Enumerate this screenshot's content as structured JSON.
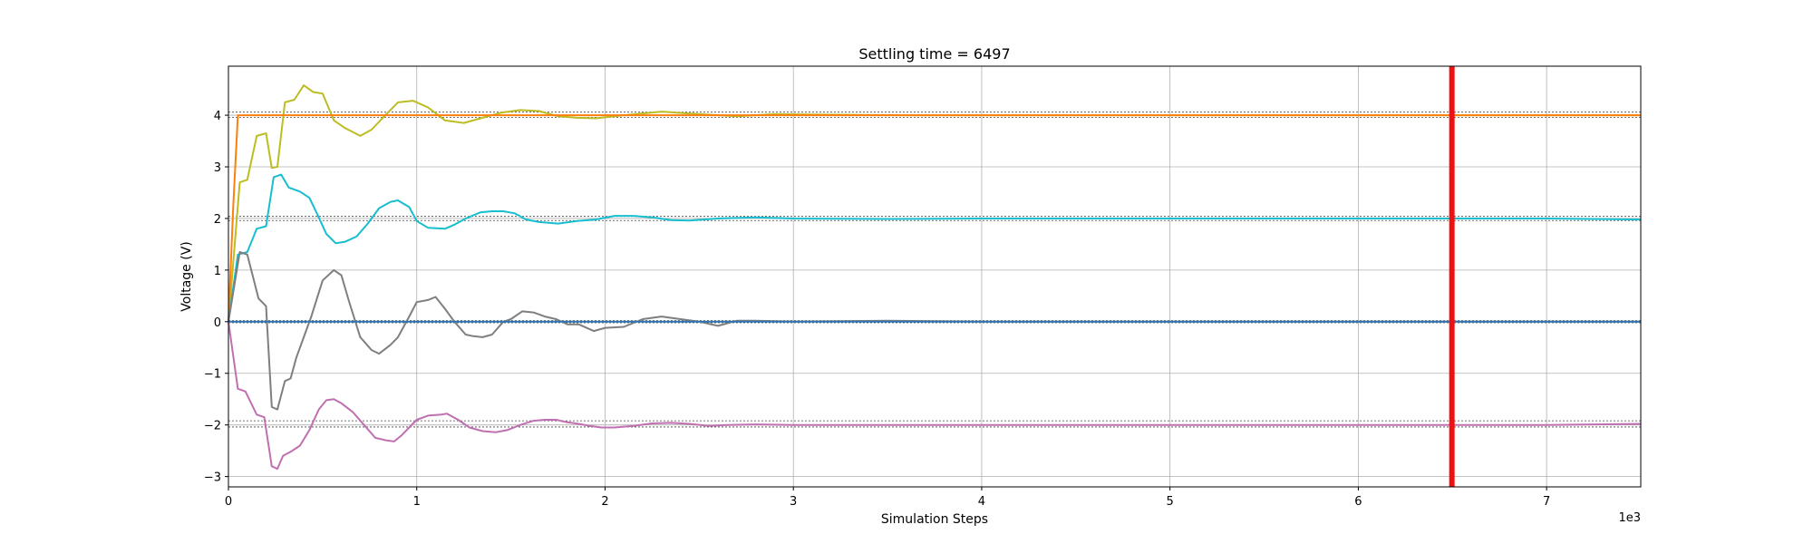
{
  "chart_data": {
    "type": "line",
    "title": "Settling time = 6497",
    "xlabel": "Simulation Steps",
    "ylabel": "Voltage (V)",
    "x_offset_text": "1e3",
    "xlim": [
      0,
      7500
    ],
    "ylim": [
      -3.2,
      4.95
    ],
    "xticks": [
      0,
      1000,
      2000,
      3000,
      4000,
      5000,
      6000,
      7000
    ],
    "xtick_labels": [
      "0",
      "1",
      "2",
      "3",
      "4",
      "5",
      "6",
      "7"
    ],
    "yticks": [
      -3,
      -2,
      -1,
      0,
      1,
      2,
      3,
      4
    ],
    "ytick_labels": [
      "−3",
      "−2",
      "−1",
      "0",
      "1",
      "2",
      "3",
      "4"
    ],
    "grid": true,
    "settling_line": {
      "x": 6497,
      "color": "#ee1111"
    },
    "tolerance_bands": [
      {
        "center": 4,
        "lower": 3.96,
        "upper": 4.06
      },
      {
        "center": 2,
        "lower": 1.96,
        "upper": 2.04
      },
      {
        "center": 0,
        "lower": -0.02,
        "upper": 0.02
      },
      {
        "center": -2,
        "lower": -2.04,
        "upper": -1.92
      }
    ],
    "series": [
      {
        "color": "#bcbd22",
        "x": [
          0,
          60,
          100,
          150,
          200,
          230,
          260,
          300,
          350,
          400,
          450,
          500,
          560,
          620,
          700,
          760,
          820,
          900,
          980,
          1060,
          1150,
          1250,
          1350,
          1450,
          1550,
          1650,
          1750,
          1850,
          1950,
          2100,
          2300,
          2500,
          2700,
          2900,
          3200,
          3600,
          4000,
          5000,
          6000,
          7500
        ],
        "y": [
          0,
          2.7,
          2.75,
          3.6,
          3.65,
          2.98,
          3.0,
          4.25,
          4.3,
          4.58,
          4.45,
          4.42,
          3.9,
          3.75,
          3.6,
          3.72,
          3.95,
          4.25,
          4.28,
          4.15,
          3.9,
          3.85,
          3.95,
          4.05,
          4.1,
          4.08,
          3.98,
          3.95,
          3.94,
          4.0,
          4.07,
          4.02,
          3.98,
          4.02,
          4.01,
          4.0,
          4.0,
          4.0,
          4.0,
          4.0
        ]
      },
      {
        "color": "#ff7f0e",
        "x": [
          0,
          25,
          50,
          7500
        ],
        "y": [
          0,
          2.2,
          4.0,
          4.0
        ]
      },
      {
        "color": "#17becf",
        "x": [
          0,
          50,
          100,
          150,
          200,
          240,
          280,
          320,
          380,
          430,
          470,
          520,
          570,
          620,
          680,
          740,
          800,
          860,
          900,
          960,
          1000,
          1060,
          1150,
          1200,
          1260,
          1340,
          1400,
          1460,
          1520,
          1580,
          1650,
          1750,
          1850,
          1950,
          2050,
          2150,
          2250,
          2350,
          2450,
          2600,
          2800,
          3000,
          3500,
          4000,
          5000,
          6000,
          7000,
          7500
        ],
        "y": [
          0,
          1.3,
          1.35,
          1.8,
          1.85,
          2.8,
          2.85,
          2.6,
          2.52,
          2.4,
          2.1,
          1.7,
          1.52,
          1.55,
          1.65,
          1.9,
          2.2,
          2.32,
          2.35,
          2.22,
          1.95,
          1.82,
          1.8,
          1.88,
          2.0,
          2.12,
          2.14,
          2.14,
          2.1,
          1.98,
          1.93,
          1.9,
          1.95,
          1.98,
          2.05,
          2.05,
          2.02,
          1.97,
          1.96,
          2.0,
          2.02,
          2.0,
          1.99,
          2.0,
          2.0,
          2.0,
          2.0,
          1.98
        ]
      },
      {
        "color": "#7f7f7f",
        "x": [
          0,
          60,
          100,
          160,
          200,
          230,
          260,
          300,
          330,
          360,
          400,
          440,
          500,
          560,
          600,
          640,
          700,
          760,
          800,
          860,
          900,
          960,
          1000,
          1060,
          1100,
          1150,
          1200,
          1260,
          1300,
          1350,
          1400,
          1460,
          1500,
          1560,
          1620,
          1680,
          1740,
          1800,
          1860,
          1940,
          2000,
          2100,
          2200,
          2300,
          2400,
          2500,
          2600,
          2700,
          2800,
          3000,
          3500,
          4000,
          5000,
          6000,
          7000,
          7500
        ],
        "y": [
          0,
          1.35,
          1.3,
          0.45,
          0.3,
          -1.65,
          -1.7,
          -1.15,
          -1.1,
          -0.7,
          -0.3,
          0.1,
          0.8,
          1.0,
          0.9,
          0.4,
          -0.3,
          -0.55,
          -0.62,
          -0.45,
          -0.3,
          0.1,
          0.38,
          0.42,
          0.48,
          0.25,
          0.0,
          -0.25,
          -0.28,
          -0.3,
          -0.25,
          0.0,
          0.05,
          0.2,
          0.18,
          0.1,
          0.05,
          -0.05,
          -0.05,
          -0.18,
          -0.12,
          -0.1,
          0.05,
          0.1,
          0.05,
          0.0,
          -0.08,
          0.02,
          0.02,
          0.0,
          0.02,
          0.0,
          0.0,
          0.0,
          0.0,
          0.0
        ]
      },
      {
        "color": "#2e75b6",
        "x": [
          0,
          7500
        ],
        "y": [
          0,
          0
        ]
      },
      {
        "color": "#c070b0",
        "x": [
          0,
          50,
          90,
          150,
          190,
          230,
          260,
          290,
          330,
          380,
          430,
          480,
          520,
          560,
          600,
          660,
          720,
          780,
          840,
          880,
          920,
          960,
          1000,
          1060,
          1130,
          1160,
          1220,
          1280,
          1350,
          1420,
          1480,
          1550,
          1620,
          1680,
          1740,
          1800,
          1860,
          1920,
          1980,
          2050,
          2150,
          2250,
          2350,
          2450,
          2550,
          2650,
          2800,
          3000,
          3500,
          4000,
          5000,
          6000,
          7000,
          7500
        ],
        "y": [
          0,
          -1.3,
          -1.35,
          -1.8,
          -1.85,
          -2.8,
          -2.85,
          -2.6,
          -2.52,
          -2.4,
          -2.1,
          -1.7,
          -1.52,
          -1.5,
          -1.58,
          -1.75,
          -2.0,
          -2.25,
          -2.3,
          -2.32,
          -2.2,
          -2.05,
          -1.9,
          -1.82,
          -1.8,
          -1.78,
          -1.9,
          -2.05,
          -2.12,
          -2.14,
          -2.1,
          -2.0,
          -1.92,
          -1.9,
          -1.9,
          -1.95,
          -1.98,
          -2.02,
          -2.05,
          -2.05,
          -2.02,
          -1.97,
          -1.96,
          -1.98,
          -2.02,
          -2.0,
          -1.99,
          -2.0,
          -2.0,
          -2.0,
          -2.0,
          -2.0,
          -2.0,
          -1.98
        ]
      }
    ]
  }
}
